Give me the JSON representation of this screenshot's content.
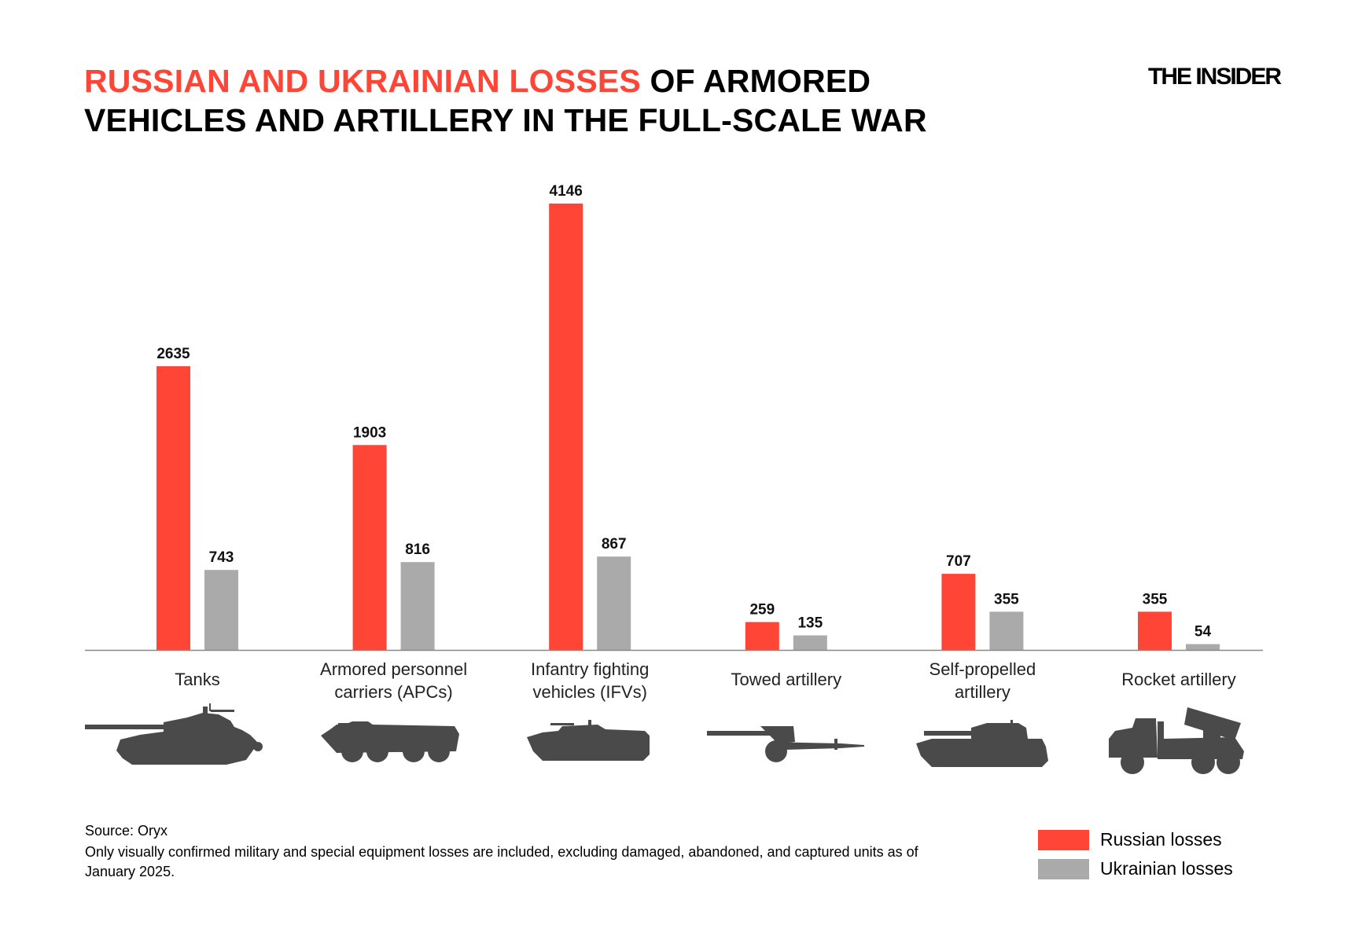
{
  "title": {
    "highlight": "RUSSIAN AND UKRAINIAN LOSSES",
    "rest_line1": " OF ARMORED",
    "line2": "VEHICLES AND ARTILLERY IN THE FULL-SCALE WAR"
  },
  "logo": "THE INSIDER",
  "colors": {
    "russian": "#ff4536",
    "ukrainian": "#aaaaaa",
    "silhouette": "#4a4a4a",
    "axis": "#888888"
  },
  "chart_data": {
    "type": "bar",
    "title": "RUSSIAN AND UKRAINIAN LOSSES OF ARMORED VEHICLES AND ARTILLERY IN THE FULL-SCALE WAR",
    "categories": [
      [
        "Tanks"
      ],
      [
        "Armored personnel",
        "carriers (APCs)"
      ],
      [
        "Infantry fighting",
        "vehicles (IFVs)"
      ],
      [
        "Towed artillery"
      ],
      [
        "Self-propelled",
        "artillery"
      ],
      [
        "Rocket artillery"
      ]
    ],
    "series": [
      {
        "name": "Russian losses",
        "values": [
          2635,
          1903,
          4146,
          259,
          707,
          355
        ]
      },
      {
        "name": "Ukrainian losses",
        "values": [
          743,
          816,
          867,
          135,
          355,
          54
        ]
      }
    ],
    "ylim": [
      0,
      4146
    ],
    "grid": false,
    "y_axis_shown": false,
    "data_labels": true,
    "legend_position": "bottom-right"
  },
  "icons": [
    "tank-icon",
    "apc-icon",
    "ifv-icon",
    "towed-artillery-icon",
    "self-propelled-artillery-icon",
    "rocket-artillery-icon"
  ],
  "footer": {
    "source": "Source: Oryx",
    "note": "Only visually confirmed military and special equipment losses are included, excluding damaged, abandoned, and captured units as of January 2025."
  },
  "legend": [
    {
      "label": "Russian losses"
    },
    {
      "label": "Ukrainian losses"
    }
  ]
}
